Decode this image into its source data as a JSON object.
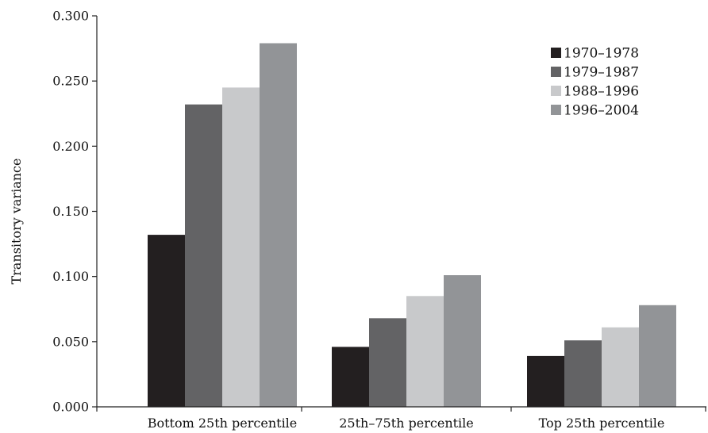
{
  "chart_data": {
    "type": "bar",
    "title": "",
    "xlabel": "",
    "ylabel": "Transitory variance",
    "ylim": [
      0,
      0.3
    ],
    "yticks": [
      "0.000",
      "0.050",
      "0.100",
      "0.150",
      "0.200",
      "0.250",
      "0.300"
    ],
    "grid": false,
    "legend_position": "top-right",
    "categories": [
      "Bottom 25th percentile",
      "25th–75th percentile",
      "Top 25th percentile"
    ],
    "series": [
      {
        "name": "1970–1978",
        "color": "#231f20",
        "values": [
          0.132,
          0.046,
          0.039
        ]
      },
      {
        "name": "1979–1987",
        "color": "#636365",
        "values": [
          0.232,
          0.068,
          0.051
        ]
      },
      {
        "name": "1988–1996",
        "color": "#c8c9cb",
        "values": [
          0.245,
          0.085,
          0.061
        ]
      },
      {
        "name": "1996–2004",
        "color": "#929497",
        "values": [
          0.279,
          0.101,
          0.078
        ]
      }
    ]
  }
}
